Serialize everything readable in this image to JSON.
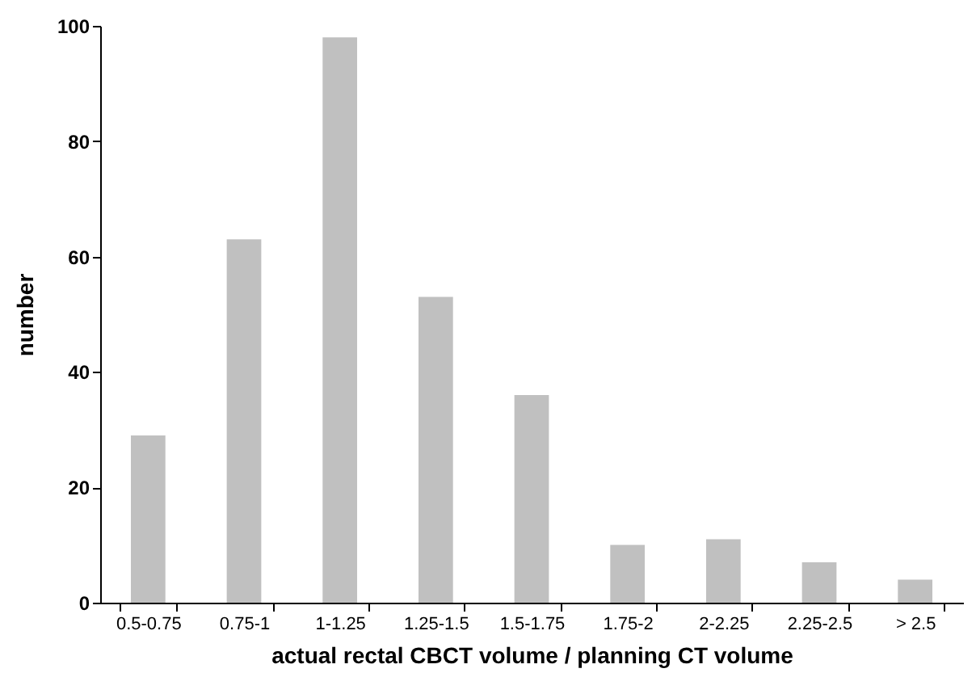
{
  "chart_data": {
    "type": "bar",
    "xlabel": "actual rectal CBCT volume / planning CT volume",
    "ylabel": "number",
    "categories": [
      "0.5-0.75",
      "0.75-1",
      "1-1.25",
      "1.25-1.5",
      "1.5-1.75",
      "1.75-2",
      "2-2.25",
      "2.25-2.5",
      "> 2.5"
    ],
    "values": [
      29,
      63,
      98,
      53,
      36,
      10,
      11,
      7,
      4
    ],
    "color": "#c0c0c0",
    "ylim": [
      0,
      100
    ],
    "yticks": [
      0,
      20,
      40,
      60,
      80,
      100
    ],
    "grid": false
  }
}
